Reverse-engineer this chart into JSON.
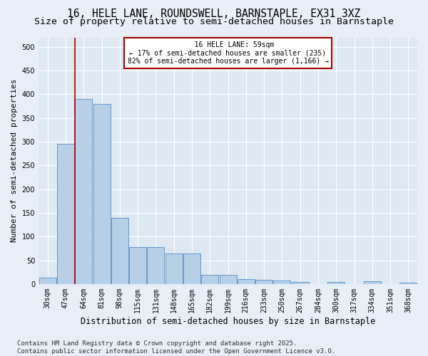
{
  "title": "16, HELE LANE, ROUNDSWELL, BARNSTAPLE, EX31 3XZ",
  "subtitle": "Size of property relative to semi-detached houses in Barnstaple",
  "xlabel": "Distribution of semi-detached houses by size in Barnstaple",
  "ylabel": "Number of semi-detached properties",
  "footnote": "Contains HM Land Registry data © Crown copyright and database right 2025.\nContains public sector information licensed under the Open Government Licence v3.0.",
  "categories": [
    "30sqm",
    "47sqm",
    "64sqm",
    "81sqm",
    "98sqm",
    "115sqm",
    "131sqm",
    "148sqm",
    "165sqm",
    "182sqm",
    "199sqm",
    "216sqm",
    "233sqm",
    "250sqm",
    "267sqm",
    "284sqm",
    "300sqm",
    "317sqm",
    "334sqm",
    "351sqm",
    "368sqm"
  ],
  "values": [
    13,
    295,
    390,
    380,
    140,
    78,
    78,
    65,
    65,
    20,
    20,
    11,
    9,
    8,
    5,
    0,
    5,
    0,
    6,
    0,
    3
  ],
  "bar_color": "#b8cfe8",
  "bar_edge_color": "#6699cc",
  "bar_edge_width": 0.7,
  "vline_x": 1.5,
  "vline_color": "#aa0000",
  "annotation_line1": "   16 HELE LANE: 59sqm",
  "annotation_line2": "← 17% of semi-detached houses are smaller (235)",
  "annotation_line3": "82% of semi-detached houses are larger (1,166) →",
  "annotation_box_color": "#aa0000",
  "annotation_fill": "#ffffff",
  "ylim": [
    0,
    520
  ],
  "yticks": [
    0,
    50,
    100,
    150,
    200,
    250,
    300,
    350,
    400,
    450,
    500
  ],
  "bg_color": "#dde8f0",
  "plot_bg_color": "#dde8f0",
  "outer_bg_color": "#e8eef5",
  "title_fontsize": 10.5,
  "subtitle_fontsize": 9.5,
  "axis_fontsize": 8.5,
  "tick_fontsize": 7,
  "ylabel_fontsize": 8,
  "footnote_fontsize": 6.5
}
